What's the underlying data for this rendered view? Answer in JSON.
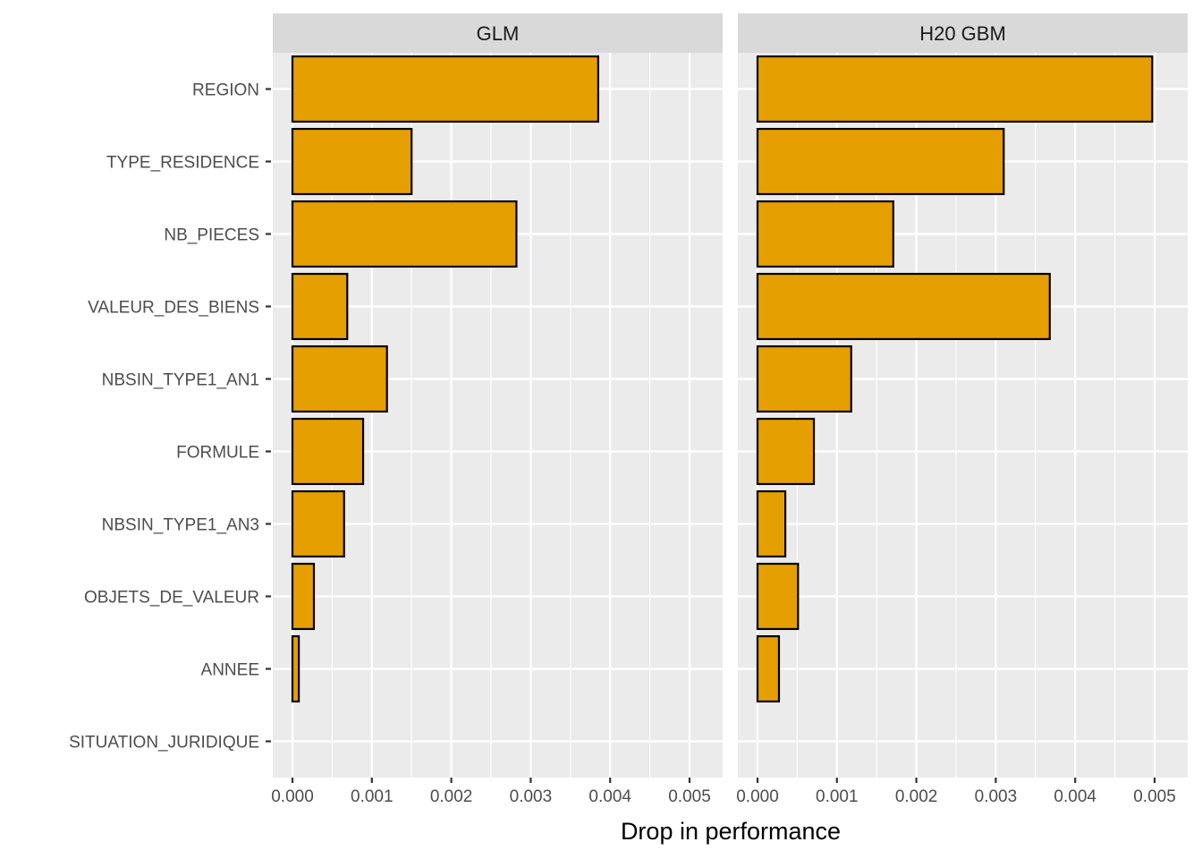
{
  "chart_data": {
    "type": "bar",
    "orientation": "horizontal",
    "title": "",
    "xlabel": "Drop in performance",
    "ylabel": "",
    "xlim": [
      0,
      0.005
    ],
    "x_ticks": [
      "0.000",
      "0.001",
      "0.002",
      "0.003",
      "0.004",
      "0.005"
    ],
    "categories": [
      "REGION",
      "TYPE_RESIDENCE",
      "NB_PIECES",
      "VALEUR_DES_BIENS",
      "NBSIN_TYPE1_AN1",
      "FORMULE",
      "NBSIN_TYPE1_AN3",
      "OBJETS_DE_VALEUR",
      "ANNEE",
      "SITUATION_JURIDIQUE"
    ],
    "bar_color": "#E69F00",
    "grid": true,
    "legend": "none",
    "panels": [
      {
        "label": "GLM",
        "values": [
          0.00385,
          0.0015,
          0.00282,
          0.00069,
          0.00119,
          0.00089,
          0.00065,
          0.00027,
          8e-05,
          0.0
        ]
      },
      {
        "label": "H20 GBM",
        "values": [
          0.00497,
          0.0031,
          0.00171,
          0.00368,
          0.00118,
          0.00071,
          0.00035,
          0.00051,
          0.00027,
          0.0
        ]
      }
    ]
  }
}
